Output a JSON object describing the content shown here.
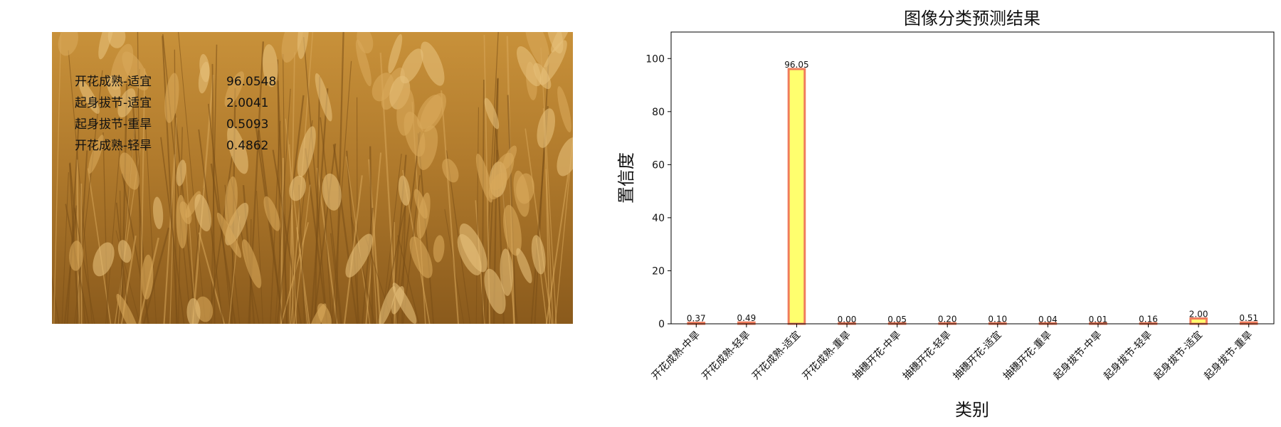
{
  "predictions": [
    {
      "label": "开花成熟-适宜",
      "score": "96.0548"
    },
    {
      "label": "起身拔节-适宜",
      "score": "2.0041"
    },
    {
      "label": "起身拔节-重旱",
      "score": "0.5093"
    },
    {
      "label": "开花成熟-轻旱",
      "score": "0.4862"
    }
  ],
  "colors": {
    "bar_fill": "#ffff6e",
    "bar_edge": "#f07c5c",
    "wheat_dark": "#7a4e16",
    "wheat_light": "#d9a85a"
  },
  "chart_data": {
    "type": "bar",
    "title": "图像分类预测结果",
    "xlabel": "类别",
    "ylabel": "置信度",
    "categories": [
      "开花成熟-中旱",
      "开花成熟-轻旱",
      "开花成熟-适宜",
      "开花成熟-重旱",
      "抽穗开花-中旱",
      "抽穗开花-轻旱",
      "抽穗开花-适宜",
      "抽穗开花-重旱",
      "起身拔节-中旱",
      "起身拔节-轻旱",
      "起身拔节-适宜",
      "起身拔节-重旱"
    ],
    "values": [
      0.37,
      0.49,
      96.05,
      0.0,
      0.05,
      0.2,
      0.1,
      0.04,
      0.01,
      0.16,
      2.0,
      0.51
    ],
    "value_labels": [
      "0.37",
      "0.49",
      "96.05",
      "0.00",
      "0.05",
      "0.20",
      "0.10",
      "0.04",
      "0.01",
      "0.16",
      "2.00",
      "0.51"
    ],
    "ylim": [
      0,
      110
    ],
    "yticks": [
      0,
      20,
      40,
      60,
      80,
      100
    ],
    "grid": false
  }
}
